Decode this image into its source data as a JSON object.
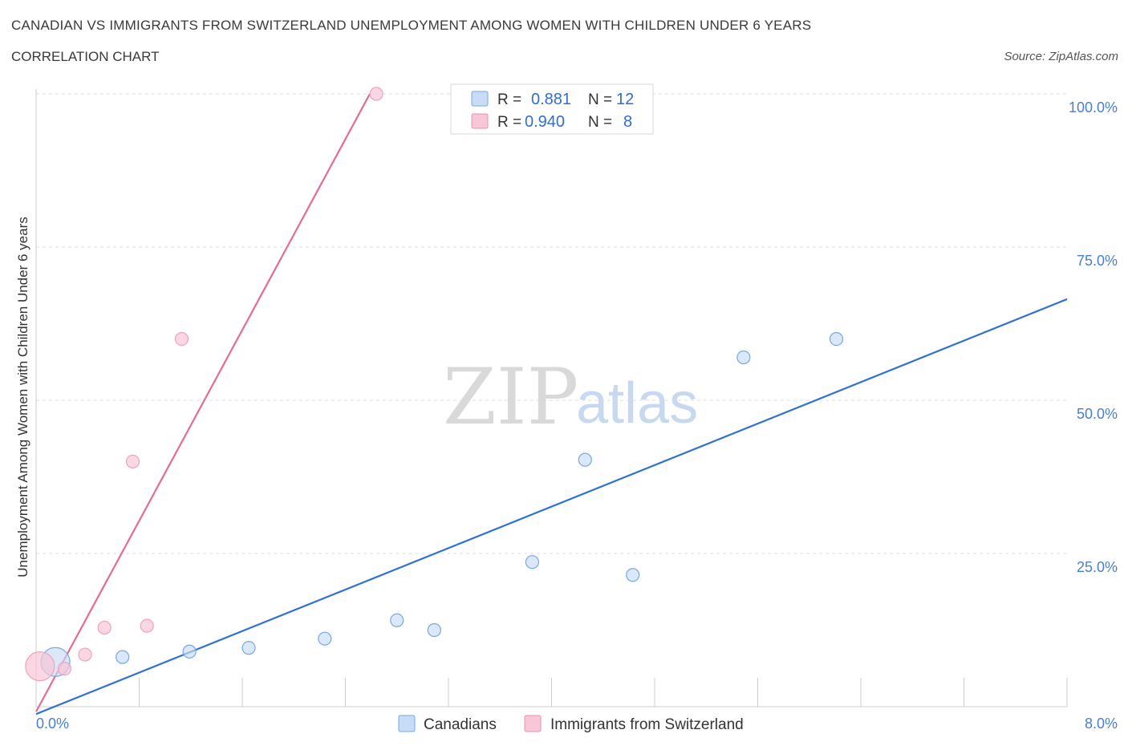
{
  "title": "CANADIAN VS IMMIGRANTS FROM SWITZERLAND UNEMPLOYMENT AMONG WOMEN WITH CHILDREN UNDER 6 YEARS",
  "subtitle": "CORRELATION CHART",
  "source": "Source: ZipAtlas.com",
  "watermark": {
    "zip": "ZIP",
    "atlas": "atlas"
  },
  "colors": {
    "blue": "#2f72d0",
    "blue_fill": "#c6dcf7",
    "pink": "#e56b95",
    "pink_fill": "#f8c6d6",
    "grid": "#dddddd",
    "tick_label": "#4a7fd0"
  },
  "legend": {
    "rows": [
      {
        "r_label": "R =",
        "r_value": "0.881",
        "n_label": "N =",
        "n_value": "12"
      },
      {
        "r_label": "R =",
        "r_value": "0.940",
        "n_label": "N =",
        "n_value": "8"
      }
    ]
  },
  "bottom_legend": [
    {
      "label": "Canadians"
    },
    {
      "label": "Immigrants from Switzerland"
    }
  ],
  "chart_data": {
    "type": "scatter",
    "title": "CANADIAN VS IMMIGRANTS FROM SWITZERLAND UNEMPLOYMENT AMONG WOMEN WITH CHILDREN UNDER 6 YEARS",
    "xlabel": "",
    "ylabel": "Unemployment Among Women with Children Under 6 years",
    "xlim": [
      0,
      8
    ],
    "ylim": [
      0,
      100
    ],
    "x_tick_labels": [
      "0.0%",
      "8.0%"
    ],
    "y_tick_values": [
      25,
      50,
      75,
      100
    ],
    "y_tick_labels": [
      "25.0%",
      "50.0%",
      "75.0%",
      "100.0%"
    ],
    "grid": true,
    "series": [
      {
        "name": "Canadians",
        "color": "#2f72d0",
        "points": [
          {
            "x": 0.15,
            "y": 7.3,
            "size": "large"
          },
          {
            "x": 0.67,
            "y": 8.1
          },
          {
            "x": 1.19,
            "y": 9.0
          },
          {
            "x": 1.65,
            "y": 9.6
          },
          {
            "x": 2.24,
            "y": 11.1
          },
          {
            "x": 2.8,
            "y": 14.1
          },
          {
            "x": 3.09,
            "y": 12.5
          },
          {
            "x": 3.85,
            "y": 23.6
          },
          {
            "x": 4.26,
            "y": 40.3
          },
          {
            "x": 4.63,
            "y": 21.5
          },
          {
            "x": 5.49,
            "y": 57.0
          },
          {
            "x": 6.21,
            "y": 60.0
          }
        ],
        "trend": {
          "x0": 0.0,
          "y0": -1.2,
          "x1": 8.0,
          "y1": 66.5
        }
      },
      {
        "name": "Immigrants from Switzerland",
        "color": "#e56b95",
        "points": [
          {
            "x": 0.03,
            "y": 6.6,
            "size": "large"
          },
          {
            "x": 0.22,
            "y": 6.2
          },
          {
            "x": 0.38,
            "y": 8.5
          },
          {
            "x": 0.53,
            "y": 12.9
          },
          {
            "x": 0.75,
            "y": 40.0
          },
          {
            "x": 0.86,
            "y": 13.2
          },
          {
            "x": 1.13,
            "y": 60.0
          },
          {
            "x": 2.64,
            "y": 100.0
          }
        ],
        "trend": {
          "x0": 0.0,
          "y0": -0.8,
          "x1": 2.59,
          "y1": 100.0
        }
      }
    ]
  }
}
